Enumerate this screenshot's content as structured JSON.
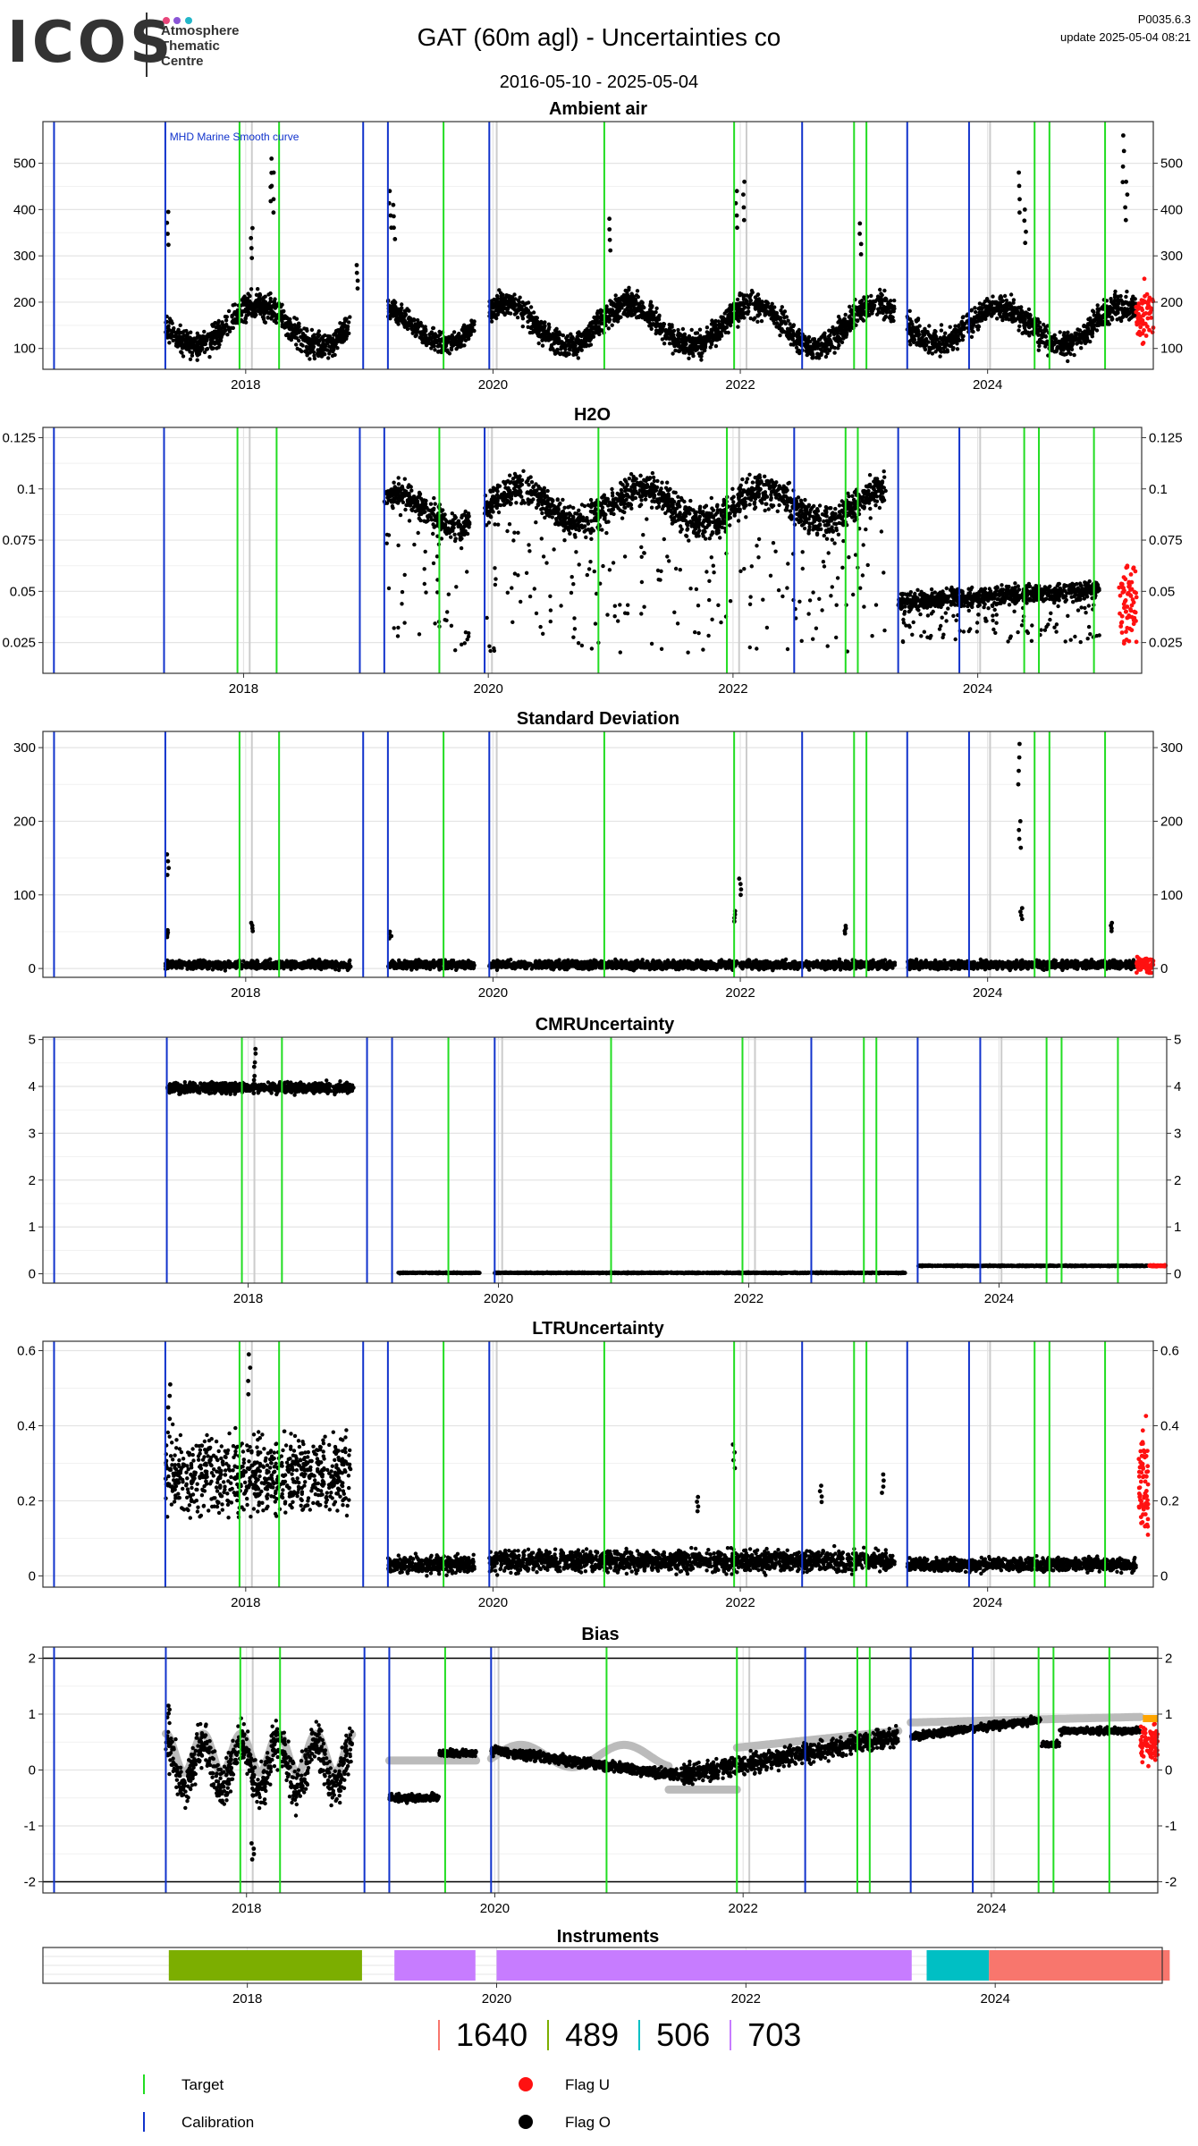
{
  "header": {
    "logo_text": "ICOS",
    "logo_sub": [
      "Atmosphere",
      "Thematic",
      "Centre"
    ],
    "logo_dot_colors": [
      "#e8457a",
      "#8a55d6",
      "#22b6c8"
    ],
    "title": "GAT  (60m agl) - Uncertainties co",
    "date_range": "2016-05-10 - 2025-05-04",
    "product_id": "P0035.6.3",
    "update": "update  2025-05-04 08:21"
  },
  "colors": {
    "target_line": "#22dd22",
    "calibration_line": "#1133cc",
    "flag_u": "#ff1111",
    "flag_o": "#000000",
    "grey_curve": "#bbbbbb",
    "gridline": "#e4e4e4",
    "bias_orange": "#ffa500"
  },
  "time_axis": {
    "start": "2016.36",
    "end": "2025.34",
    "ticks": [
      "2018",
      "2020",
      "2022",
      "2024"
    ]
  },
  "events": {
    "calibration": [
      "2016.45",
      "2017.35",
      "2018.95",
      "2019.15",
      "2019.97",
      "2022.50",
      "2023.35",
      "2023.85"
    ],
    "target": [
      "2017.95",
      "2018.27",
      "2019.60",
      "2020.90",
      "2021.95",
      "2022.92",
      "2023.02",
      "2024.38",
      "2024.50",
      "2024.95"
    ],
    "grey": [
      "2018.05",
      "2020.03",
      "2022.05",
      "2024.02"
    ]
  },
  "chart_data": [
    {
      "type": "scatter",
      "title": "Ambient air",
      "annotation": "MHD Marine Smooth curve",
      "ylim": [
        55,
        590
      ],
      "yticks": [
        100,
        200,
        300,
        400,
        500
      ],
      "segments": [
        {
          "from": 2017.35,
          "to": 2018.85,
          "pattern": "seasonal",
          "base": 150,
          "amp": 45,
          "noise": 25
        },
        {
          "from": 2019.15,
          "to": 2019.85,
          "pattern": "seasonal",
          "base": 150,
          "amp": 40,
          "noise": 20
        },
        {
          "from": 2019.97,
          "to": 2023.25,
          "pattern": "seasonal",
          "base": 150,
          "amp": 45,
          "noise": 25
        },
        {
          "from": 2023.35,
          "to": 2025.2,
          "pattern": "seasonal",
          "base": 150,
          "amp": 40,
          "noise": 25
        }
      ],
      "spikes": [
        {
          "x": 2018.2,
          "y": 510
        },
        {
          "x": 2018.22,
          "y": 480
        },
        {
          "x": 2018.05,
          "y": 360
        },
        {
          "x": 2019.17,
          "y": 440
        },
        {
          "x": 2019.2,
          "y": 410
        },
        {
          "x": 2020.95,
          "y": 380
        },
        {
          "x": 2021.97,
          "y": 440
        },
        {
          "x": 2022.03,
          "y": 460
        },
        {
          "x": 2022.97,
          "y": 370
        },
        {
          "x": 2024.25,
          "y": 480
        },
        {
          "x": 2024.3,
          "y": 400
        },
        {
          "x": 2025.1,
          "y": 560
        },
        {
          "x": 2025.12,
          "y": 460
        },
        {
          "x": 2017.37,
          "y": 395
        },
        {
          "x": 2018.9,
          "y": 280
        }
      ],
      "flag_u": {
        "from": 2025.2,
        "to": 2025.34,
        "base": 170,
        "noise": 50
      }
    },
    {
      "type": "scatter",
      "title": "H2O",
      "ylim": [
        0.01,
        0.13
      ],
      "yticks": [
        0.025,
        0.05,
        0.075,
        0.1,
        0.125
      ],
      "segments": [
        {
          "from": 2019.15,
          "to": 2019.85,
          "pattern": "band",
          "base": 0.09,
          "amp": 0.008,
          "noise": 0.006,
          "low": 0.02
        },
        {
          "from": 2019.97,
          "to": 2023.25,
          "pattern": "band",
          "base": 0.092,
          "amp": 0.008,
          "noise": 0.007,
          "low": 0.02
        },
        {
          "from": 2023.35,
          "to": 2025.0,
          "pattern": "trend",
          "base": 0.045,
          "amp": 0.006,
          "noise": 0.004,
          "low": 0.025
        }
      ],
      "spikes": [],
      "flag_u": {
        "from": 2025.15,
        "to": 2025.3,
        "base": 0.045,
        "noise": 0.02
      }
    },
    {
      "type": "scatter",
      "title": "Standard Deviation",
      "ylim": [
        -12,
        322
      ],
      "yticks": [
        0,
        100,
        200,
        300
      ],
      "segments": [
        {
          "from": 2017.35,
          "to": 2018.85,
          "pattern": "flat",
          "base": 5,
          "amp": 0,
          "noise": 5
        },
        {
          "from": 2019.15,
          "to": 2019.85,
          "pattern": "flat",
          "base": 5,
          "amp": 0,
          "noise": 5
        },
        {
          "from": 2019.97,
          "to": 2023.25,
          "pattern": "flat",
          "base": 5,
          "amp": 0,
          "noise": 5
        },
        {
          "from": 2023.35,
          "to": 2025.2,
          "pattern": "flat",
          "base": 5,
          "amp": 0,
          "noise": 5
        }
      ],
      "spikes": [
        {
          "x": 2017.37,
          "y": 155
        },
        {
          "x": 2017.37,
          "y": 52
        },
        {
          "x": 2018.05,
          "y": 62
        },
        {
          "x": 2019.17,
          "y": 50
        },
        {
          "x": 2022.0,
          "y": 122
        },
        {
          "x": 2021.95,
          "y": 78
        },
        {
          "x": 2022.85,
          "y": 58
        },
        {
          "x": 2024.25,
          "y": 305
        },
        {
          "x": 2024.26,
          "y": 200
        },
        {
          "x": 2024.27,
          "y": 82
        },
        {
          "x": 2025.0,
          "y": 62
        }
      ],
      "flag_u": {
        "from": 2025.2,
        "to": 2025.34,
        "base": 5,
        "noise": 10
      }
    },
    {
      "type": "scatter",
      "title": "CMRUncertainty",
      "ylim": [
        -0.2,
        5.05
      ],
      "yticks": [
        0,
        1,
        2,
        3,
        4,
        5
      ],
      "segments": [
        {
          "from": 2017.35,
          "to": 2018.85,
          "pattern": "flat",
          "base": 3.97,
          "amp": 0,
          "noise": 0.1
        },
        {
          "from": 2019.2,
          "to": 2019.85,
          "pattern": "flat",
          "base": 0.02,
          "amp": 0,
          "noise": 0.01
        },
        {
          "from": 2019.97,
          "to": 2023.25,
          "pattern": "flat",
          "base": 0.02,
          "amp": 0,
          "noise": 0.01
        },
        {
          "from": 2023.35,
          "to": 2025.2,
          "pattern": "flat",
          "base": 0.17,
          "amp": 0,
          "noise": 0.01
        }
      ],
      "spikes": [
        {
          "x": 2018.05,
          "y": 4.8
        },
        {
          "x": 2018.05,
          "y": 4.7
        }
      ],
      "flag_u": {
        "from": 2025.2,
        "to": 2025.34,
        "base": 0.17,
        "noise": 0.01
      }
    },
    {
      "type": "scatter",
      "title": "LTRUncertainty",
      "ylim": [
        -0.03,
        0.625
      ],
      "yticks": [
        0,
        0.2,
        0.4,
        0.6
      ],
      "segments": [
        {
          "from": 2017.35,
          "to": 2018.85,
          "pattern": "flat",
          "base": 0.27,
          "amp": 0.03,
          "noise": 0.09
        },
        {
          "from": 2019.15,
          "to": 2019.85,
          "pattern": "flat",
          "base": 0.03,
          "amp": 0,
          "noise": 0.02
        },
        {
          "from": 2019.97,
          "to": 2023.25,
          "pattern": "flat",
          "base": 0.04,
          "amp": 0.01,
          "noise": 0.025
        },
        {
          "from": 2023.35,
          "to": 2025.2,
          "pattern": "flat",
          "base": 0.03,
          "amp": 0,
          "noise": 0.015
        }
      ],
      "spikes": [
        {
          "x": 2018.03,
          "y": 0.59
        },
        {
          "x": 2017.38,
          "y": 0.51
        },
        {
          "x": 2021.95,
          "y": 0.35
        },
        {
          "x": 2021.65,
          "y": 0.21
        },
        {
          "x": 2022.65,
          "y": 0.24
        },
        {
          "x": 2023.15,
          "y": 0.27
        }
      ],
      "flag_u": {
        "from": 2025.22,
        "to": 2025.3,
        "base": 0.25,
        "noise": 0.15
      }
    },
    {
      "type": "scatter",
      "title": "Bias",
      "ylim": [
        -2.2,
        2.2
      ],
      "yticks": [
        -2,
        -1,
        0,
        1,
        2
      ],
      "hlines": [
        -2,
        2
      ],
      "segments": [
        {
          "from": 2017.35,
          "to": 2018.85,
          "pattern": "wavy",
          "base": 0.1,
          "amp": 0.4,
          "noise": 0.35
        },
        {
          "from": 2019.15,
          "to": 2019.55,
          "pattern": "flat",
          "base": -0.5,
          "amp": 0,
          "noise": 0.06
        },
        {
          "from": 2019.55,
          "to": 2019.85,
          "pattern": "flat",
          "base": 0.3,
          "amp": 0,
          "noise": 0.05
        },
        {
          "from": 2019.97,
          "to": 2021.5,
          "pattern": "slope",
          "base": 0.35,
          "amp": -0.45,
          "noise": 0.08
        },
        {
          "from": 2021.5,
          "to": 2023.25,
          "pattern": "slope",
          "base": -0.1,
          "amp": 0.7,
          "noise": 0.15
        },
        {
          "from": 2023.35,
          "to": 2024.4,
          "pattern": "slope",
          "base": 0.6,
          "amp": 0.3,
          "noise": 0.06
        },
        {
          "from": 2024.4,
          "to": 2024.55,
          "pattern": "flat",
          "base": 0.45,
          "amp": 0,
          "noise": 0.05
        },
        {
          "from": 2024.55,
          "to": 2025.2,
          "pattern": "flat",
          "base": 0.7,
          "amp": 0,
          "noise": 0.05
        }
      ],
      "grey_curve": [
        {
          "from": 2017.35,
          "to": 2018.85,
          "pattern": "wavy",
          "base": 0.3,
          "amp": 0.35
        },
        {
          "from": 2019.15,
          "to": 2019.85,
          "pattern": "flat",
          "base": 0.17,
          "amp": 0
        },
        {
          "from": 2019.97,
          "to": 2021.4,
          "pattern": "wave",
          "base": 0.25,
          "amp": 0.2
        },
        {
          "from": 2021.4,
          "to": 2021.95,
          "pattern": "flat",
          "base": -0.35,
          "amp": 0
        },
        {
          "from": 2021.95,
          "to": 2023.25,
          "pattern": "slope",
          "base": 0.4,
          "amp": 0.3
        },
        {
          "from": 2023.35,
          "to": 2025.2,
          "pattern": "slope",
          "base": 0.85,
          "amp": 0.1
        }
      ],
      "spikes": [
        {
          "x": 2017.37,
          "y": 1.15
        },
        {
          "x": 2018.05,
          "y": -1.6
        }
      ],
      "flag_u": {
        "from": 2025.2,
        "to": 2025.34,
        "base": 0.5,
        "noise": 0.3
      },
      "orange_segment": {
        "from": 2025.22,
        "to": 2025.34,
        "y": 0.92
      }
    }
  ],
  "instruments": {
    "title": "Instruments",
    "bars": [
      {
        "from": 2017.37,
        "to": 2018.92,
        "color": "#7cae00",
        "instrument": "489"
      },
      {
        "from": 2019.18,
        "to": 2019.83,
        "color": "#c77cff",
        "instrument": "703"
      },
      {
        "from": 2020.0,
        "to": 2023.33,
        "color": "#c77cff",
        "instrument": "703"
      },
      {
        "from": 2023.45,
        "to": 2023.95,
        "color": "#00bfc4",
        "instrument": "506"
      },
      {
        "from": 2023.95,
        "to": 2025.4,
        "color": "#f8766d",
        "instrument": "1640"
      }
    ],
    "legend": [
      {
        "label": "1640",
        "color": "#f8766d"
      },
      {
        "label": "489",
        "color": "#7cae00"
      },
      {
        "label": "506",
        "color": "#00bfc4"
      },
      {
        "label": "703",
        "color": "#c77cff"
      }
    ]
  },
  "legend": {
    "target": "Target",
    "calibration": "Calibration",
    "flag_u": "Flag U",
    "flag_o": "Flag O"
  }
}
